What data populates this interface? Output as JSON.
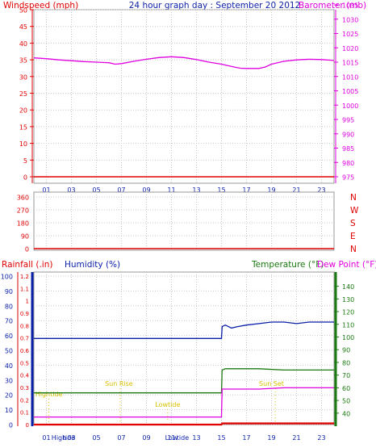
{
  "colors": {
    "red": "#e00000",
    "magenta": "#e000e0",
    "blue": "#0a1fa8",
    "green": "#1a7a10",
    "yellow": "#d8c000",
    "pink": "#e000e0",
    "grid": "#c8c8c8"
  },
  "header": {
    "left": "Windspeed (mph)",
    "center": "24 hour graph day : September 20 2012",
    "right": "Barometer (mb)"
  },
  "mid_labels": {
    "rainfall": "Rainfall (.in)",
    "humidity": "Humidity (%)",
    "temperature": "Temperature (°F)",
    "dewpoint": "Dew Point (°F)"
  },
  "chart_data": [
    {
      "type": "line",
      "title": "24 hour graph day : September 20 2012",
      "x_ticks": [
        "01",
        "03",
        "05",
        "07",
        "09",
        "11",
        "13",
        "15",
        "17",
        "19",
        "21",
        "23"
      ],
      "x_range": [
        0,
        24
      ],
      "y_left_label": "Windspeed (mph)",
      "y_left_ticks": [
        0,
        5,
        10,
        15,
        20,
        25,
        30,
        35,
        40,
        45,
        50
      ],
      "y_left_range": [
        0,
        50
      ],
      "y_right_label": "Barometer (mb)",
      "y_right_ticks": [
        975,
        980,
        985,
        990,
        995,
        1000,
        1005,
        1010,
        1015,
        1020,
        1025,
        1030,
        1035
      ],
      "y_right_range": [
        975,
        1035
      ],
      "grid": true,
      "series": [
        {
          "name": "Windspeed (mph)",
          "axis": "left",
          "color": "#e00000",
          "x": [
            0,
            24
          ],
          "y": [
            0,
            0
          ]
        },
        {
          "name": "Barometer (mb)",
          "axis": "right",
          "color": "#e000e0",
          "x": [
            0,
            1,
            2,
            3,
            4,
            5,
            6,
            6.5,
            7,
            8,
            9,
            10,
            11,
            12,
            13,
            14,
            15,
            16,
            16.5,
            17,
            18,
            18.5,
            19,
            20,
            21,
            22,
            23,
            24
          ],
          "y": [
            1016.5,
            1016.2,
            1015.8,
            1015.5,
            1015.2,
            1015.0,
            1014.8,
            1014.3,
            1014.5,
            1015.3,
            1016.0,
            1016.6,
            1016.9,
            1016.6,
            1015.9,
            1015.0,
            1014.3,
            1013.3,
            1012.9,
            1012.8,
            1012.8,
            1013.3,
            1014.3,
            1015.3,
            1015.8,
            1016.0,
            1015.9,
            1015.6
          ]
        }
      ]
    },
    {
      "type": "line",
      "title": "",
      "x_ticks": [],
      "x_range": [
        0,
        24
      ],
      "y_left_ticks": [
        0,
        90,
        180,
        270,
        360
      ],
      "y_left_range": [
        0,
        360
      ],
      "y_right_ticks": [
        "N",
        "W",
        "S",
        "E",
        "N"
      ],
      "grid": true,
      "series": [
        {
          "name": "Wind direction",
          "axis": "left",
          "color": "#e00000",
          "x": [
            0,
            24
          ],
          "y": [
            0,
            0
          ]
        }
      ]
    },
    {
      "type": "line",
      "title": "",
      "x_ticks": [
        "01",
        "03",
        "05",
        "07",
        "09",
        "11",
        "13",
        "15",
        "17",
        "19",
        "21",
        "23"
      ],
      "x_range": [
        0,
        24
      ],
      "y_humidity_label": "Humidity (%)",
      "y_humidity_ticks": [
        0,
        10,
        20,
        30,
        40,
        50,
        60,
        70,
        80,
        90,
        100
      ],
      "y_humidity_range": [
        0,
        100
      ],
      "y_rain_label": "Rainfall (.in)",
      "y_rain_ticks": [
        "0",
        "0.1",
        "0.2",
        "0.3",
        "0.4",
        "0.5",
        "0.6",
        "0.7",
        "0.8",
        "0.9",
        "1",
        "1.1",
        "1.2"
      ],
      "y_rain_range": [
        0,
        1.2
      ],
      "y_temp_label": "Temperature (°F)",
      "y_temp_ticks": [
        40,
        50,
        60,
        70,
        80,
        90,
        100,
        110,
        120,
        130,
        140
      ],
      "y_temp_range": [
        31,
        148
      ],
      "grid": true,
      "series": [
        {
          "name": "Humidity (%)",
          "axis": "humidity",
          "color": "#0a1fa8",
          "x": [
            0,
            15,
            15.05,
            15.3,
            15.8,
            16.3,
            17,
            18,
            19,
            20,
            21,
            22,
            23,
            24
          ],
          "y": [
            58,
            58,
            66,
            67,
            65,
            66,
            67,
            68,
            69,
            69,
            68,
            69,
            69,
            69
          ]
        },
        {
          "name": "Temperature (°F)",
          "axis": "temp",
          "color": "#1a7a10",
          "x": [
            0,
            15,
            15.05,
            15.3,
            16,
            18,
            20,
            22,
            24
          ],
          "y": [
            56,
            56,
            74,
            75,
            75,
            75,
            74,
            74,
            74
          ]
        },
        {
          "name": "Dew Point (°F)",
          "axis": "temp",
          "color": "#e000e0",
          "x": [
            0,
            15,
            15.05,
            16,
            18,
            20,
            22,
            24
          ],
          "y": [
            37,
            37,
            59,
            59,
            59,
            60,
            60,
            60
          ]
        },
        {
          "name": "Rainfall (.in)",
          "axis": "rain",
          "color": "#e00000",
          "x": [
            0,
            15,
            15.05,
            24
          ],
          "y": [
            0,
            0,
            0.01,
            0.01
          ]
        }
      ],
      "annotations": [
        {
          "label": "Hightide",
          "x": 1.2,
          "y_frac": 0.19,
          "color": "#d8c000",
          "marker_x": 1.2
        },
        {
          "label": "Sun Rise",
          "x": 6.8,
          "y_frac": 0.26,
          "color": "#d8c000",
          "marker_x": 6.9
        },
        {
          "label": "Lowtide",
          "x": 10.7,
          "y_frac": 0.12,
          "color": "#d8c000",
          "marker_x": 10.7
        },
        {
          "label": "Sun Set",
          "x": 19.0,
          "y_frac": 0.26,
          "color": "#d8c000",
          "marker_x": 19.3
        }
      ],
      "bottom_labels": [
        {
          "label": "High",
          "x": 2.0,
          "color": "#0a1fa8"
        },
        {
          "label": "tide",
          "x": 2.8,
          "color": "#0a1fa8"
        },
        {
          "label": "Low",
          "x": 11.0,
          "color": "#0a1fa8"
        },
        {
          "label": "tide",
          "x": 11.9,
          "color": "#0a1fa8"
        }
      ]
    }
  ]
}
